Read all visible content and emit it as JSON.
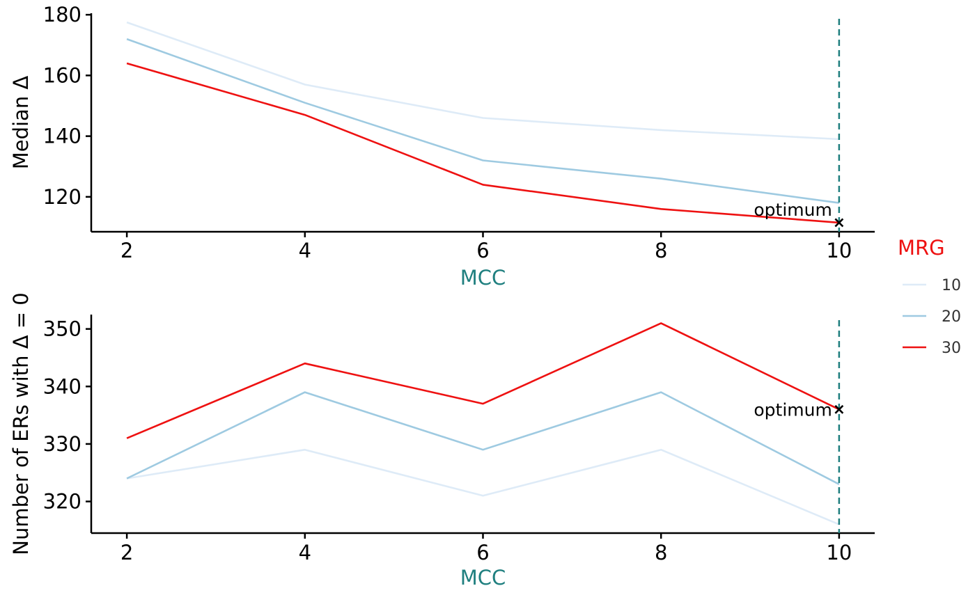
{
  "chart_data": [
    {
      "type": "line",
      "title": "",
      "xlabel": "MCC",
      "ylabel": "Median Δ",
      "x": [
        2,
        4,
        6,
        8,
        10
      ],
      "xlim": [
        1.6,
        10.4
      ],
      "ylim": [
        108.5,
        180.5
      ],
      "xticks": [
        "2",
        "4",
        "6",
        "8",
        "10"
      ],
      "yticks": [
        "120",
        "140",
        "160",
        "180"
      ],
      "series": [
        {
          "name": "10",
          "values": [
            177.5,
            157,
            146,
            142,
            139
          ]
        },
        {
          "name": "20",
          "values": [
            172,
            151,
            132,
            126,
            118
          ]
        },
        {
          "name": "30",
          "values": [
            164,
            147,
            124,
            116,
            111.5
          ]
        }
      ],
      "optimum": {
        "x": 10,
        "y": 111.5,
        "label": "optimum"
      },
      "vline_x": 10
    },
    {
      "type": "line",
      "title": "",
      "xlabel": "MCC",
      "ylabel": "Number of ERs with  Δ = 0",
      "x": [
        2,
        4,
        6,
        8,
        10
      ],
      "xlim": [
        1.6,
        10.4
      ],
      "ylim": [
        314.5,
        352.5
      ],
      "xticks": [
        "2",
        "4",
        "6",
        "8",
        "10"
      ],
      "yticks": [
        "320",
        "330",
        "340",
        "350"
      ],
      "series": [
        {
          "name": "10",
          "values": [
            324,
            329,
            321,
            329,
            316
          ]
        },
        {
          "name": "20",
          "values": [
            324,
            339,
            329,
            339,
            323
          ]
        },
        {
          "name": "30",
          "values": [
            331,
            344,
            337,
            351,
            336
          ]
        }
      ],
      "optimum": {
        "x": 10,
        "y": 336,
        "label": "optimum"
      },
      "vline_x": 10
    }
  ],
  "legend": {
    "title": "MRG",
    "items": [
      {
        "label": "10",
        "color": "#deebf7"
      },
      {
        "label": "20",
        "color": "#9ecae1"
      },
      {
        "label": "30",
        "color": "#ee1111"
      }
    ]
  },
  "colors": {
    "series": [
      "#deebf7",
      "#9ecae1",
      "#ee1111"
    ],
    "xlabel": "#1f7f7f",
    "legend_title": "#ee1111",
    "vline": "#1f7f7f",
    "axis": "#000000"
  }
}
